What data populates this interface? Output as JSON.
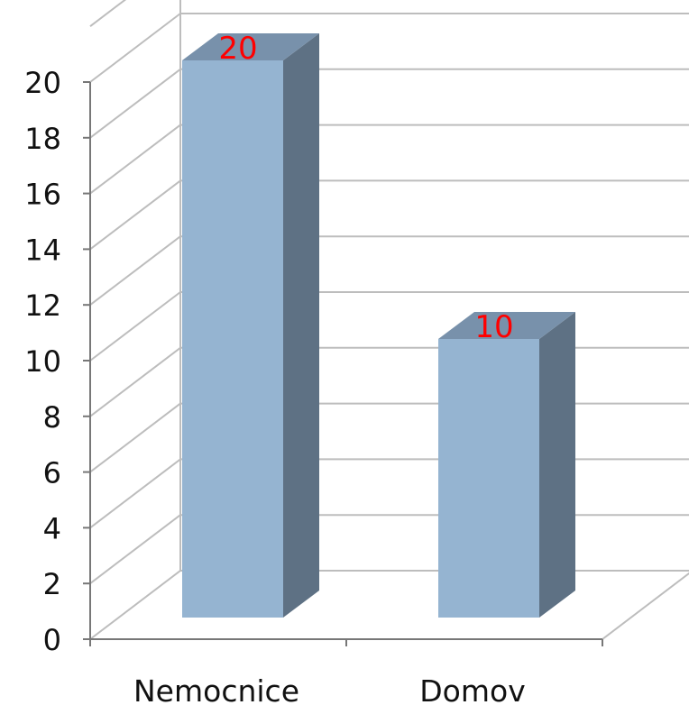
{
  "chart_data": {
    "type": "bar",
    "categories": [
      "Nemocnice",
      "Domov"
    ],
    "values": [
      20,
      10
    ],
    "data_labels": [
      "20",
      "10"
    ],
    "ylim": [
      0,
      20
    ],
    "yticks": [
      "0",
      "2",
      "4",
      "6",
      "8",
      "10",
      "12",
      "14",
      "16",
      "18",
      "20"
    ],
    "grid": true,
    "legend": "none",
    "colors": {
      "bar_front": "#95b4d1",
      "bar_side": "#5e7184",
      "bar_top": "#7891ab",
      "grid": "#bdbdbd",
      "data_label": "#ff0000"
    }
  }
}
